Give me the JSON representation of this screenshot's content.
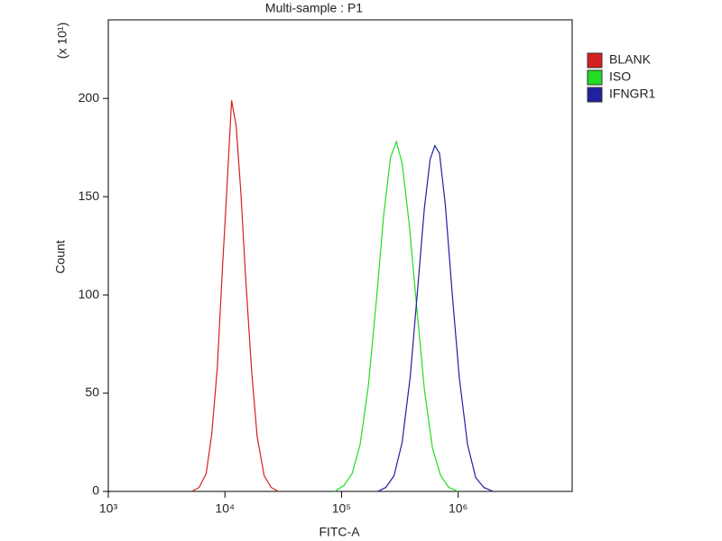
{
  "chart_data": {
    "type": "line",
    "title": "Multi-sample : P1",
    "xlabel": "FITC-A",
    "ylabel": "Count",
    "ylabel_multiplier": "(x 10¹)",
    "xscale": "log",
    "xlim": [
      1000,
      9500000
    ],
    "xticks": [
      {
        "value": 1000,
        "label": "10³"
      },
      {
        "value": 10000,
        "label": "10⁴"
      },
      {
        "value": 100000,
        "label": "10⁵"
      },
      {
        "value": 1000000,
        "label": "10⁶"
      }
    ],
    "ylim": [
      0,
      240
    ],
    "yticks": [
      0,
      50,
      100,
      150,
      200
    ],
    "legend": "right",
    "series": [
      {
        "name": "BLANK",
        "color": "#d42020",
        "x": [
          5200,
          6000,
          6900,
          7700,
          8600,
          9500,
          10400,
          11400,
          12500,
          13700,
          15000,
          16900,
          18900,
          21700,
          24900,
          28800
        ],
        "values": [
          0,
          2,
          9,
          29,
          63,
          112,
          154,
          199,
          186,
          152,
          110,
          62,
          28,
          8,
          2,
          0
        ]
      },
      {
        "name": "ISO",
        "color": "#22dd22",
        "x": [
          87100,
          104700,
          123000,
          144500,
          169800,
          199500,
          229100,
          263000,
          295100,
          331100,
          380200,
          436500,
          512900,
          602600,
          707900,
          831800,
          1000000
        ],
        "values": [
          0,
          3,
          9,
          24,
          54,
          98,
          140,
          170,
          178,
          167,
          136,
          97,
          52,
          22,
          8,
          2,
          0
        ]
      },
      {
        "name": "IFNGR1",
        "color": "#2020a0",
        "x": [
          204200,
          239900,
          281800,
          331100,
          389000,
          446700,
          512900,
          575400,
          631000,
          691800,
          776200,
          891300,
          1023000,
          1202000,
          1413000,
          1660000,
          1995000
        ],
        "values": [
          0,
          2,
          8,
          25,
          59,
          101,
          144,
          169,
          176,
          172,
          146,
          100,
          58,
          24,
          7,
          2,
          0
        ]
      }
    ]
  }
}
